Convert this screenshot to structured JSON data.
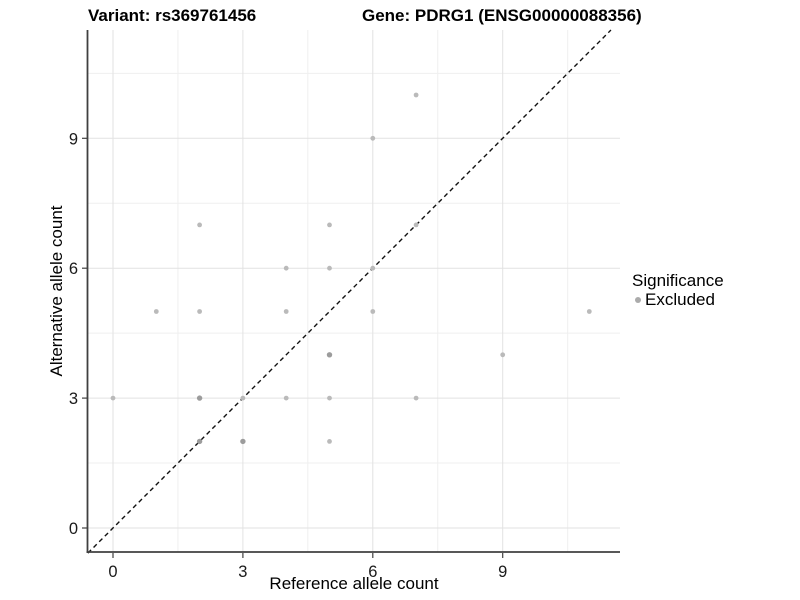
{
  "titles": {
    "variant": "Variant: rs369761456",
    "gene": "Gene: PDRG1 (ENSG00000088356)"
  },
  "legend": {
    "title": "Significance",
    "items": [
      {
        "label": "Excluded",
        "color": "#ababab"
      }
    ]
  },
  "colors": {
    "background": "#ffffff",
    "grid_major": "#e2e2e2",
    "grid_minor": "#efefef",
    "axis_line": "#404040",
    "tick_mark": "#404040",
    "tick_label": "#1a1a1a",
    "point": "#bababa",
    "point_dense": "#9c9c9c",
    "identity_line": "#111111"
  },
  "chart_data": {
    "type": "scatter",
    "title_left": "Variant: rs369761456",
    "title_right": "Gene: PDRG1 (ENSG00000088356)",
    "xlabel": "Reference allele count",
    "ylabel": "Alternative allele count",
    "xlim": [
      -0.58,
      11.72
    ],
    "ylim": [
      -0.55,
      11.5
    ],
    "x_ticks": [
      0,
      3,
      6,
      9
    ],
    "y_ticks": [
      0,
      3,
      6,
      9
    ],
    "x_minor_ticks": [
      1.5,
      4.5,
      7.5,
      10.5
    ],
    "y_minor_ticks": [
      1.5,
      4.5,
      7.5,
      10.5
    ],
    "grid": true,
    "legend_position": "right",
    "identity_line": {
      "type": "dashed",
      "slope": 1,
      "intercept": 0
    },
    "series": [
      {
        "name": "Excluded",
        "points": [
          {
            "x": 0,
            "y": 3,
            "dense": false
          },
          {
            "x": 1,
            "y": 5,
            "dense": false
          },
          {
            "x": 2,
            "y": 2,
            "dense": true
          },
          {
            "x": 2,
            "y": 3,
            "dense": true
          },
          {
            "x": 2,
            "y": 5,
            "dense": false
          },
          {
            "x": 2,
            "y": 7,
            "dense": false
          },
          {
            "x": 3,
            "y": 2,
            "dense": true
          },
          {
            "x": 3,
            "y": 3,
            "dense": false
          },
          {
            "x": 4,
            "y": 3,
            "dense": false
          },
          {
            "x": 4,
            "y": 5,
            "dense": false
          },
          {
            "x": 4,
            "y": 6,
            "dense": false
          },
          {
            "x": 5,
            "y": 2,
            "dense": false
          },
          {
            "x": 5,
            "y": 3,
            "dense": false
          },
          {
            "x": 5,
            "y": 4,
            "dense": true
          },
          {
            "x": 5,
            "y": 6,
            "dense": false
          },
          {
            "x": 5,
            "y": 7,
            "dense": false
          },
          {
            "x": 6,
            "y": 5,
            "dense": false
          },
          {
            "x": 6,
            "y": 6,
            "dense": false
          },
          {
            "x": 6,
            "y": 9,
            "dense": false
          },
          {
            "x": 7,
            "y": 3,
            "dense": false
          },
          {
            "x": 7,
            "y": 7,
            "dense": false
          },
          {
            "x": 7,
            "y": 10,
            "dense": false
          },
          {
            "x": 9,
            "y": 4,
            "dense": false
          },
          {
            "x": 11,
            "y": 5,
            "dense": false
          }
        ]
      }
    ]
  }
}
